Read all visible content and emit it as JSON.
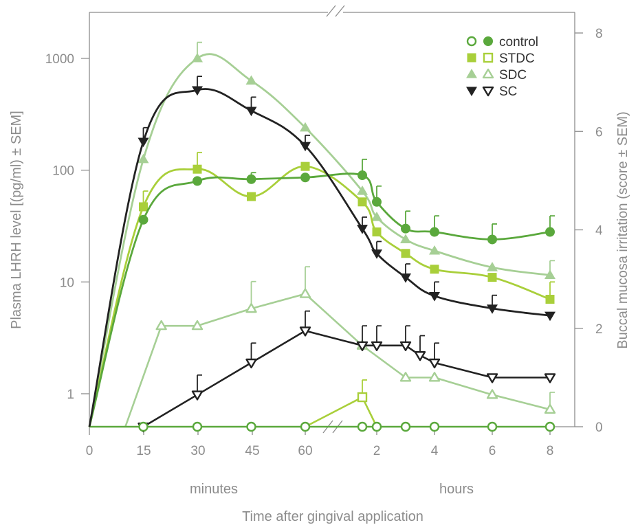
{
  "chart_data": {
    "type": "line",
    "ylabel_left": "Plasma LHRH level [(pg/ml) ± SEM]",
    "ylabel_right": "Buccal mucosa  irritation (score ± SEM)",
    "xlabel": "Time after gingival application",
    "x_group_labels": [
      "minutes",
      "hours"
    ],
    "x_ticks": [
      "0",
      "15",
      "30",
      "45",
      "60",
      "2",
      "4",
      "6",
      "8"
    ],
    "y_left_ticks": [
      "1",
      "10",
      "100",
      "1000"
    ],
    "y_right_ticks": [
      "0",
      "2",
      "4",
      "6",
      "8"
    ],
    "y_left_scale": "log",
    "y_right_range": [
      0,
      8
    ],
    "legend": [
      {
        "label": "control",
        "filled_marker": "circle",
        "open_marker": "circle",
        "color": "#5aa83c"
      },
      {
        "label": "STDC",
        "filled_marker": "square",
        "open_marker": "square",
        "color": "#a9cf3a"
      },
      {
        "label": "SDC",
        "filled_marker": "triangle-up",
        "open_marker": "triangle-up",
        "color": "#a6cf95"
      },
      {
        "label": "SC",
        "filled_marker": "triangle-down",
        "open_marker": "triangle-down",
        "color": "#222222"
      }
    ],
    "series_plasma": [
      {
        "name": "control",
        "color": "#5aa83c",
        "points": [
          {
            "x": "15 min",
            "y": 36,
            "err": 0
          },
          {
            "x": "30 min",
            "y": 80,
            "err": 0
          },
          {
            "x": "45 min",
            "y": 83,
            "err": 12
          },
          {
            "x": "60 min",
            "y": 86,
            "err": 0
          },
          {
            "x": "1.5 h",
            "y": 90,
            "err": 35
          },
          {
            "x": "2 h",
            "y": 52,
            "err": 20
          },
          {
            "x": "3 h",
            "y": 30,
            "err": 13
          },
          {
            "x": "4 h",
            "y": 28,
            "err": 11
          },
          {
            "x": "6 h",
            "y": 24,
            "err": 9
          },
          {
            "x": "8 h",
            "y": 28,
            "err": 11
          }
        ]
      },
      {
        "name": "STDC",
        "color": "#a9cf3a",
        "points": [
          {
            "x": "15 min",
            "y": 47,
            "err": 18
          },
          {
            "x": "30 min",
            "y": 102,
            "err": 42
          },
          {
            "x": "45 min",
            "y": 58,
            "err": 0
          },
          {
            "x": "60 min",
            "y": 108,
            "err": 0
          },
          {
            "x": "1.5 h",
            "y": 52,
            "err": 0
          },
          {
            "x": "2 h",
            "y": 28,
            "err": 0
          },
          {
            "x": "3 h",
            "y": 18,
            "err": 0
          },
          {
            "x": "4 h",
            "y": 13,
            "err": 0
          },
          {
            "x": "6 h",
            "y": 11,
            "err": 0
          },
          {
            "x": "8 h",
            "y": 7,
            "err": 3
          }
        ]
      },
      {
        "name": "SDC",
        "color": "#a6cf95",
        "points": [
          {
            "x": "15 min",
            "y": 125,
            "err": 0
          },
          {
            "x": "30 min",
            "y": 1000,
            "err": 390
          },
          {
            "x": "45 min",
            "y": 630,
            "err": 0
          },
          {
            "x": "60 min",
            "y": 240,
            "err": 0
          },
          {
            "x": "1.5 h",
            "y": 65,
            "err": 0
          },
          {
            "x": "2 h",
            "y": 38,
            "err": 0
          },
          {
            "x": "3 h",
            "y": 24,
            "err": 0
          },
          {
            "x": "4 h",
            "y": 19,
            "err": 0
          },
          {
            "x": "6 h",
            "y": 13.5,
            "err": 0
          },
          {
            "x": "8 h",
            "y": 11.5,
            "err": 4
          }
        ]
      },
      {
        "name": "SC",
        "color": "#222222",
        "points": [
          {
            "x": "15 min",
            "y": 180,
            "err": 60
          },
          {
            "x": "30 min",
            "y": 520,
            "err": 170
          },
          {
            "x": "45 min",
            "y": 340,
            "err": 110
          },
          {
            "x": "60 min",
            "y": 165,
            "err": 40
          },
          {
            "x": "1.5 h",
            "y": 30,
            "err": 8
          },
          {
            "x": "2 h",
            "y": 18,
            "err": 5
          },
          {
            "x": "3 h",
            "y": 11,
            "err": 3.5
          },
          {
            "x": "4 h",
            "y": 7.5,
            "err": 2.5
          },
          {
            "x": "6 h",
            "y": 5.8,
            "err": 1.8
          },
          {
            "x": "8 h",
            "y": 5,
            "err": 0
          }
        ]
      }
    ],
    "series_irritation": [
      {
        "name": "control",
        "color": "#5aa83c",
        "points": [
          {
            "x": "0 min",
            "y": 0
          },
          {
            "x": "15 min",
            "y": 0
          },
          {
            "x": "30 min",
            "y": 0
          },
          {
            "x": "45 min",
            "y": 0
          },
          {
            "x": "60 min",
            "y": 0
          },
          {
            "x": "1.5 h",
            "y": 0
          },
          {
            "x": "2 h",
            "y": 0
          },
          {
            "x": "3 h",
            "y": 0
          },
          {
            "x": "4 h",
            "y": 0
          },
          {
            "x": "6 h",
            "y": 0
          },
          {
            "x": "8 h",
            "y": 0
          }
        ]
      },
      {
        "name": "STDC",
        "color": "#a9cf3a",
        "points": [
          {
            "x": "60 min",
            "y": 0
          },
          {
            "x": "1.5 h",
            "y": 0.6,
            "err": 0.35
          },
          {
            "x": "2 h",
            "y": 0
          }
        ]
      },
      {
        "name": "SDC",
        "color": "#a6cf95",
        "points": [
          {
            "x": "10 min",
            "y": 0
          },
          {
            "x": "20 min",
            "y": 2.05
          },
          {
            "x": "30 min",
            "y": 2.05
          },
          {
            "x": "45 min",
            "y": 2.4,
            "err": 0.55
          },
          {
            "x": "60 min",
            "y": 2.7,
            "err": 0.55
          },
          {
            "x": "1.5 h",
            "y": 1.65
          },
          {
            "x": "3 h",
            "y": 1.0
          },
          {
            "x": "4 h",
            "y": 1.0
          },
          {
            "x": "6 h",
            "y": 0.65
          },
          {
            "x": "8 h",
            "y": 0.35,
            "err": 0.35
          }
        ]
      },
      {
        "name": "SC",
        "color": "#222222",
        "points": [
          {
            "x": "15 min",
            "y": 0
          },
          {
            "x": "30 min",
            "y": 0.65,
            "err": 0.4
          },
          {
            "x": "45 min",
            "y": 1.3,
            "err": 0.4
          },
          {
            "x": "60 min",
            "y": 1.95,
            "err": 0.4
          },
          {
            "x": "1.5 h",
            "y": 1.65,
            "err": 0.4
          },
          {
            "x": "2 h",
            "y": 1.65,
            "err": 0.4
          },
          {
            "x": "3 h",
            "y": 1.65,
            "err": 0.4
          },
          {
            "x": "3.5 h",
            "y": 1.45,
            "err": 0.4
          },
          {
            "x": "4 h",
            "y": 1.3,
            "err": 0.4
          },
          {
            "x": "6 h",
            "y": 1.0
          },
          {
            "x": "8 h",
            "y": 1.0
          }
        ]
      }
    ]
  }
}
